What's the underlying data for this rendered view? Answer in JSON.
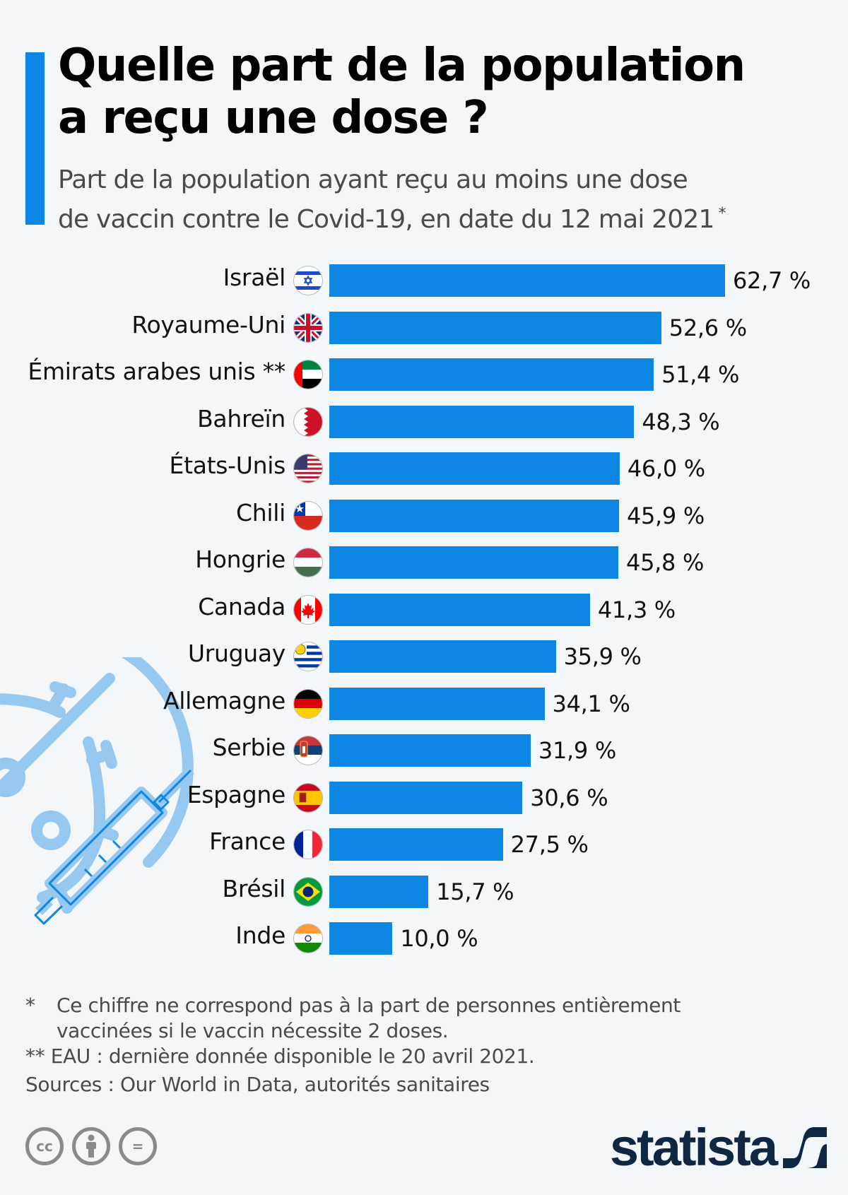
{
  "header": {
    "title_line1": "Quelle part de la population",
    "title_line2": "a reçu une dose ?",
    "subtitle_line1": "Part de la population ayant reçu au moins une dose",
    "subtitle_line2": "de vaccin contre le Covid-19, en date du 12 mai 2021",
    "subtitle_asterisk": "*"
  },
  "colors": {
    "bar": "#0e86e3",
    "accent": "#0e86e3",
    "background": "#f3f7fa",
    "decoration": "#97c8f0",
    "logo": "#0f2742"
  },
  "chart_data": {
    "type": "bar",
    "orientation": "horizontal",
    "title": "Quelle part de la population a reçu une dose ?",
    "subtitle": "Part de la population ayant reçu au moins une dose de vaccin contre le Covid-19, en date du 12 mai 2021 *",
    "xlabel": "",
    "ylabel": "",
    "unit": "%",
    "xlim": [
      0,
      62.7
    ],
    "grid": false,
    "legend": "none",
    "categories": [
      "Israël",
      "Royaume-Uni",
      "Émirats arabes unis **",
      "Bahreïn",
      "États-Unis",
      "Chili",
      "Hongrie",
      "Canada",
      "Uruguay",
      "Allemagne",
      "Serbie",
      "Espagne",
      "France",
      "Brésil",
      "Inde"
    ],
    "values": [
      62.7,
      52.6,
      51.4,
      48.3,
      46.0,
      45.9,
      45.8,
      41.3,
      35.9,
      34.1,
      31.9,
      30.6,
      27.5,
      15.7,
      10.0
    ],
    "value_labels": [
      "62,7 %",
      "52,6 %",
      "51,4 %",
      "48,3 %",
      "46,0 %",
      "45,9 %",
      "45,8 %",
      "41,3 %",
      "35,9 %",
      "34,1 %",
      "31,9 %",
      "30,6 %",
      "27,5 %",
      "15,7 %",
      "10,0 %"
    ],
    "flags": [
      "israel-flag-icon",
      "uk-flag-icon",
      "uae-flag-icon",
      "bahrain-flag-icon",
      "usa-flag-icon",
      "chile-flag-icon",
      "hungary-flag-icon",
      "canada-flag-icon",
      "uruguay-flag-icon",
      "germany-flag-icon",
      "serbia-flag-icon",
      "spain-flag-icon",
      "france-flag-icon",
      "brazil-flag-icon",
      "india-flag-icon"
    ]
  },
  "footer": {
    "note1_mark": "*",
    "note1_line1": "Ce chiffre ne correspond pas à la part de personnes entièrement",
    "note1_line2": "vaccinées si le vaccin nécessite 2 doses.",
    "note2": "** EAU : dernière donnée disponible le 20 avril 2021.",
    "sources": "Sources : Our World in Data, autorités sanitaires",
    "license_icons": [
      "cc-icon",
      "attribution-icon",
      "no-derivatives-icon"
    ],
    "cc_label": "cc",
    "nd_label": "=",
    "brand": "statista"
  }
}
